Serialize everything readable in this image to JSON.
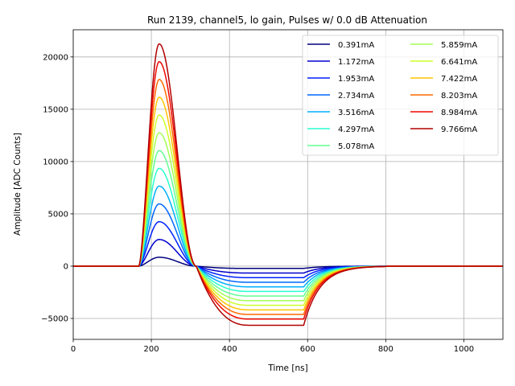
{
  "chart_data": {
    "type": "line",
    "title": "Run 2139, channel5, lo gain, Pulses w/ 0.0 dB Attenuation",
    "xlabel": "Time [ns]",
    "ylabel": "Amplitude [ADC Counts]",
    "xlim": [
      0,
      1100
    ],
    "ylim": [
      -7000,
      22600
    ],
    "xticks": [
      0,
      200,
      400,
      600,
      800,
      1000
    ],
    "yticks": [
      -5000,
      0,
      5000,
      10000,
      15000,
      20000
    ],
    "grid": true,
    "legend_position": "top-right",
    "legend_columns": 2,
    "pulse_shape": {
      "baseline": 0,
      "onset_ns": 168,
      "peak_ns": 220,
      "zero_crossing_ns": 315,
      "undershoot_flat_from_ns": 450,
      "undershoot_end_ns": 590,
      "recovered_by_ns": 800
    },
    "series": [
      {
        "name": "0.391mA",
        "color": "#00007f",
        "peak": 850,
        "undershoot": -220
      },
      {
        "name": "1.172mA",
        "color": "#0000cd",
        "peak": 2550,
        "undershoot": -660
      },
      {
        "name": "1.953mA",
        "color": "#0020ff",
        "peak": 4250,
        "undershoot": -1100
      },
      {
        "name": "2.734mA",
        "color": "#0068ff",
        "peak": 5950,
        "undershoot": -1540
      },
      {
        "name": "3.516mA",
        "color": "#00b0ff",
        "peak": 7650,
        "undershoot": -1980
      },
      {
        "name": "4.297mA",
        "color": "#29ffce",
        "peak": 9350,
        "undershoot": -2420
      },
      {
        "name": "5.078mA",
        "color": "#62ff94",
        "peak": 11050,
        "undershoot": -2860
      },
      {
        "name": "5.859mA",
        "color": "#a3ff54",
        "peak": 12750,
        "undershoot": -3300
      },
      {
        "name": "6.641mA",
        "color": "#ceff29",
        "peak": 14450,
        "undershoot": -3740
      },
      {
        "name": "7.422mA",
        "color": "#ffc400",
        "peak": 16150,
        "undershoot": -4180
      },
      {
        "name": "8.203mA",
        "color": "#ff6800",
        "peak": 17850,
        "undershoot": -4620
      },
      {
        "name": "8.984mA",
        "color": "#f10800",
        "peak": 19550,
        "undershoot": -5060
      },
      {
        "name": "9.766mA",
        "color": "#b20000",
        "peak": 21250,
        "undershoot": -5650
      }
    ]
  }
}
